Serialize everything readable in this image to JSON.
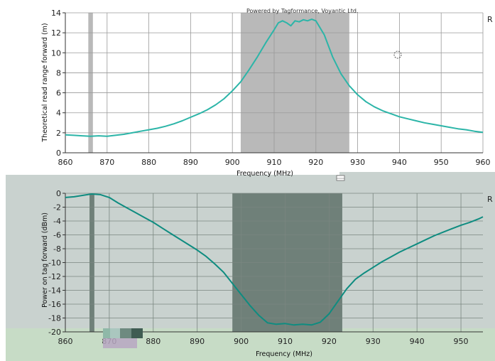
{
  "chart_data": [
    {
      "type": "line",
      "credit": "Powered by Tagformance, Voyantic Ltd.",
      "corner_mark": "R",
      "xlabel": "Frequency (MHz)",
      "ylabel": "Theoretical read range forward (m)",
      "xlim": [
        860,
        960
      ],
      "ylim": [
        0,
        14
      ],
      "x_ticks": [
        "860",
        "870",
        "880",
        "890",
        "900",
        "910",
        "920",
        "930",
        "940",
        "950",
        "960"
      ],
      "y_ticks": [
        "0",
        "2",
        "4",
        "6",
        "8",
        "10",
        "12",
        "14"
      ],
      "grid": true,
      "line_color": "#2cb5a8",
      "shaded_bands": [
        [
          865.5,
          866.6
        ],
        [
          902,
          928
        ]
      ],
      "series": [
        {
          "x": [
            860,
            862,
            864,
            866,
            868,
            870,
            872,
            874,
            876,
            878,
            880,
            882,
            884,
            886,
            888,
            890,
            892,
            894,
            896,
            898,
            900,
            902,
            904,
            906,
            908,
            910,
            911,
            912,
            913,
            914,
            915,
            916,
            917,
            918,
            919,
            920,
            922,
            924,
            926,
            928,
            930,
            932,
            934,
            936,
            938,
            940,
            942,
            944,
            946,
            948,
            950,
            952,
            954,
            956,
            958,
            960
          ],
          "y": [
            1.8,
            1.75,
            1.7,
            1.65,
            1.7,
            1.65,
            1.75,
            1.85,
            2.0,
            2.15,
            2.3,
            2.45,
            2.65,
            2.9,
            3.2,
            3.55,
            3.9,
            4.3,
            4.8,
            5.4,
            6.2,
            7.1,
            8.3,
            9.6,
            11.0,
            12.3,
            13.0,
            13.2,
            13.0,
            12.7,
            13.2,
            13.1,
            13.3,
            13.2,
            13.35,
            13.2,
            11.8,
            9.6,
            7.9,
            6.7,
            5.8,
            5.1,
            4.6,
            4.2,
            3.9,
            3.6,
            3.4,
            3.2,
            3.0,
            2.85,
            2.7,
            2.55,
            2.4,
            2.3,
            2.15,
            2.05
          ]
        }
      ]
    },
    {
      "type": "line",
      "corner_mark": "R",
      "xlabel": "Frequency (MHz)",
      "ylabel": "Power on tag forward (dBm)",
      "xlim": [
        860,
        955
      ],
      "ylim": [
        -20,
        0
      ],
      "x_ticks": [
        "860",
        "870",
        "880",
        "890",
        "900",
        "910",
        "920",
        "930",
        "940",
        "950"
      ],
      "y_ticks": [
        "0",
        "-2",
        "-4",
        "-6",
        "-8",
        "-10",
        "-12",
        "-14",
        "-16",
        "-18",
        "-20"
      ],
      "grid": true,
      "line_color": "#0e8c80",
      "shaded_bands": [
        [
          865.5,
          866.6
        ],
        [
          898,
          923
        ]
      ],
      "series": [
        {
          "x": [
            860,
            862,
            864,
            866,
            868,
            870,
            872,
            874,
            876,
            878,
            880,
            882,
            884,
            886,
            888,
            890,
            892,
            894,
            896,
            898,
            900,
            902,
            904,
            906,
            908,
            910,
            912,
            914,
            916,
            918,
            920,
            922,
            924,
            926,
            928,
            930,
            932,
            934,
            936,
            938,
            940,
            942,
            944,
            946,
            948,
            950,
            952,
            954,
            955
          ],
          "y": [
            -0.6,
            -0.5,
            -0.3,
            -0.1,
            -0.2,
            -0.6,
            -1.4,
            -2.1,
            -2.8,
            -3.5,
            -4.2,
            -5.0,
            -5.8,
            -6.6,
            -7.4,
            -8.2,
            -9.1,
            -10.2,
            -11.4,
            -13.0,
            -14.6,
            -16.2,
            -17.6,
            -18.7,
            -18.9,
            -18.8,
            -19.0,
            -18.9,
            -19.0,
            -18.6,
            -17.4,
            -15.6,
            -13.8,
            -12.4,
            -11.5,
            -10.7,
            -9.9,
            -9.2,
            -8.5,
            -7.9,
            -7.3,
            -6.7,
            -6.1,
            -5.6,
            -5.1,
            -4.6,
            -4.2,
            -3.7,
            -3.4
          ]
        }
      ]
    }
  ]
}
